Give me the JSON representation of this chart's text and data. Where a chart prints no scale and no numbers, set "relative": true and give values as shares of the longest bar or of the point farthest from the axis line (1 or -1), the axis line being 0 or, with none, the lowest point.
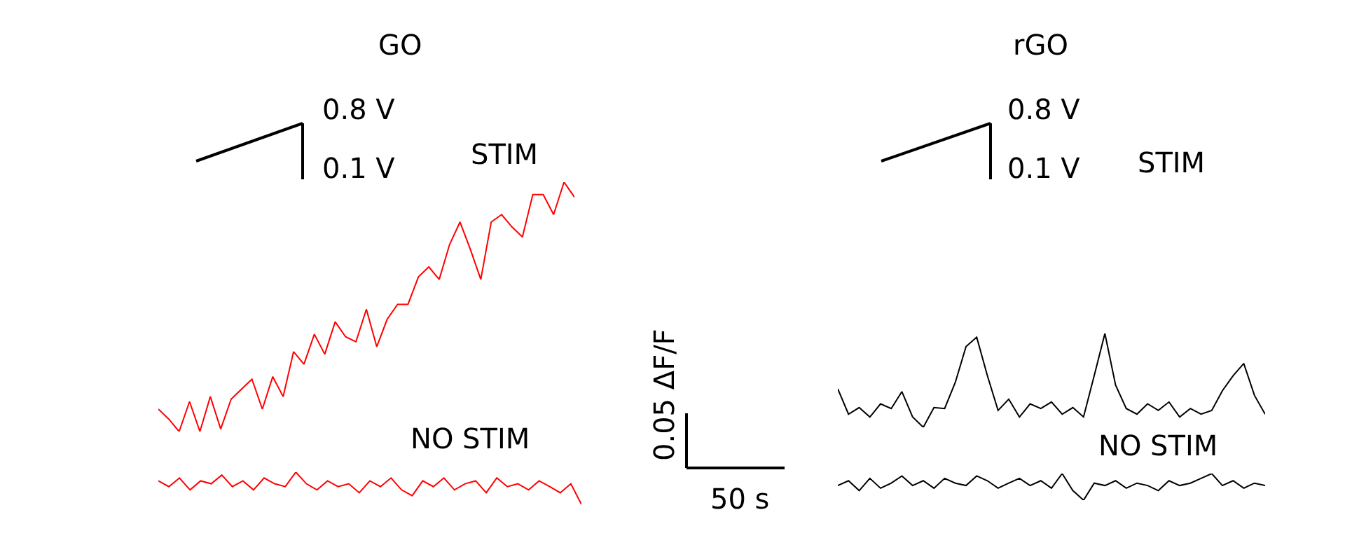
{
  "chart_data": [
    {
      "type": "line",
      "title": "GO",
      "relative": true,
      "categories": [
        null,
        null,
        null,
        null,
        null,
        null,
        null,
        null,
        null,
        null,
        null,
        null,
        null,
        null,
        null,
        null,
        null,
        null,
        null,
        null,
        null,
        null,
        null,
        null,
        null,
        null,
        null,
        null,
        null,
        null,
        null,
        null,
        null,
        null,
        null,
        null,
        null,
        null,
        null,
        null,
        null
      ],
      "series": [
        {
          "color": "#ff0000",
          "values": [
            0.09,
            0.05,
            0,
            0.12,
            0,
            0.14,
            0.01,
            0.13,
            0.17,
            0.21,
            0.09,
            0.22,
            0.14,
            0.32,
            0.27,
            0.39,
            0.31,
            0.44,
            0.38,
            0.36,
            0.49,
            0.34,
            0.45,
            0.51,
            0.51,
            0.62,
            0.66,
            0.61,
            0.75,
            0.84,
            0.73,
            0.61,
            0.84,
            0.87,
            0.82,
            0.78,
            0.95,
            0.95,
            0.87,
            1,
            0.94
          ]
        }
      ],
      "annotations": [
        "0.8 V",
        "0.1 V",
        "STIM",
        "NO STIM"
      ]
    },
    {
      "type": "line",
      "relative": true,
      "categories": [
        null,
        null,
        null,
        null,
        null,
        null,
        null,
        null,
        null,
        null,
        null,
        null,
        null,
        null,
        null,
        null,
        null,
        null,
        null,
        null,
        null,
        null,
        null,
        null,
        null,
        null,
        null,
        null,
        null,
        null,
        null,
        null,
        null,
        null,
        null,
        null,
        null,
        null,
        null,
        null,
        null
      ],
      "series": [
        {
          "color": "#ff0000",
          "values": [
            0.73,
            0.55,
            0.82,
            0.45,
            0.73,
            0.64,
            0.91,
            0.55,
            0.73,
            0.45,
            0.82,
            0.64,
            0.55,
            1,
            0.64,
            0.45,
            0.73,
            0.55,
            0.64,
            0.36,
            0.73,
            0.55,
            0.82,
            0.45,
            0.27,
            0.73,
            0.55,
            0.82,
            0.45,
            0.64,
            0.73,
            0.36,
            0.82,
            0.55,
            0.64,
            0.45,
            0.73,
            0.55,
            0.36,
            0.64,
            0
          ]
        }
      ]
    },
    {
      "type": "line",
      "title": "rGO",
      "relative": true,
      "categories": [
        null,
        null,
        null,
        null,
        null,
        null,
        null,
        null,
        null,
        null,
        null,
        null,
        null,
        null,
        null,
        null,
        null,
        null,
        null,
        null,
        null,
        null,
        null,
        null,
        null,
        null,
        null,
        null,
        null,
        null,
        null,
        null,
        null,
        null,
        null,
        null,
        null,
        null,
        null,
        null,
        null
      ],
      "series": [
        {
          "color": "#000000",
          "values": [
            0.41,
            0.14,
            0.21,
            0.11,
            0.25,
            0.2,
            0.38,
            0.11,
            0,
            0.21,
            0.2,
            0.48,
            0.86,
            0.96,
            0.55,
            0.18,
            0.3,
            0.11,
            0.25,
            0.2,
            0.27,
            0.14,
            0.21,
            0.11,
            0.55,
            1,
            0.45,
            0.2,
            0.14,
            0.25,
            0.18,
            0.27,
            0.11,
            0.2,
            0.14,
            0.18,
            0.39,
            0.55,
            0.68,
            0.34,
            0.14
          ]
        }
      ],
      "annotations": [
        "0.8 V",
        "0.1 V",
        "STIM",
        "NO STIM"
      ]
    },
    {
      "type": "line",
      "relative": true,
      "categories": [
        null,
        null,
        null,
        null,
        null,
        null,
        null,
        null,
        null,
        null,
        null,
        null,
        null,
        null,
        null,
        null,
        null,
        null,
        null,
        null,
        null,
        null,
        null,
        null,
        null,
        null,
        null,
        null,
        null,
        null,
        null,
        null,
        null,
        null,
        null,
        null,
        null,
        null,
        null,
        null,
        null
      ],
      "series": [
        {
          "color": "#000000",
          "values": [
            0.55,
            0.73,
            0.36,
            0.82,
            0.45,
            0.64,
            0.91,
            0.55,
            0.73,
            0.45,
            0.82,
            0.64,
            0.55,
            0.91,
            0.73,
            0.45,
            0.64,
            0.82,
            0.55,
            0.73,
            0.45,
            1,
            0.36,
            0,
            0.64,
            0.55,
            0.73,
            0.45,
            0.64,
            0.55,
            0.36,
            0.73,
            0.55,
            0.64,
            0.82,
            1,
            0.55,
            0.73,
            0.45,
            0.64,
            0.55
          ]
        }
      ]
    },
    {
      "type": "other",
      "annotations": [
        "0.05 ΔF/F",
        "50 s"
      ]
    }
  ]
}
